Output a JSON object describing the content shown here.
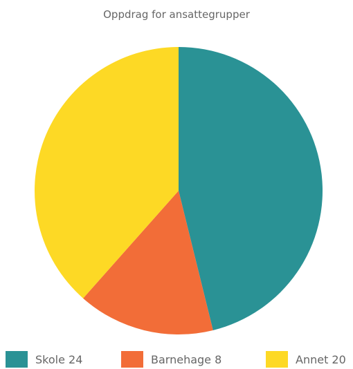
{
  "chart_data": {
    "type": "pie",
    "title": "Oppdrag for ansattegrupper",
    "categories": [
      "Skole",
      "Barnehage",
      "Annet"
    ],
    "values": [
      24,
      8,
      20
    ],
    "colors": [
      "#2a9295",
      "#f26d38",
      "#fdd925"
    ],
    "legend_position": "bottom",
    "legend_labels": [
      "Skole 24",
      "Barnehage 8",
      "Annet 20"
    ]
  }
}
